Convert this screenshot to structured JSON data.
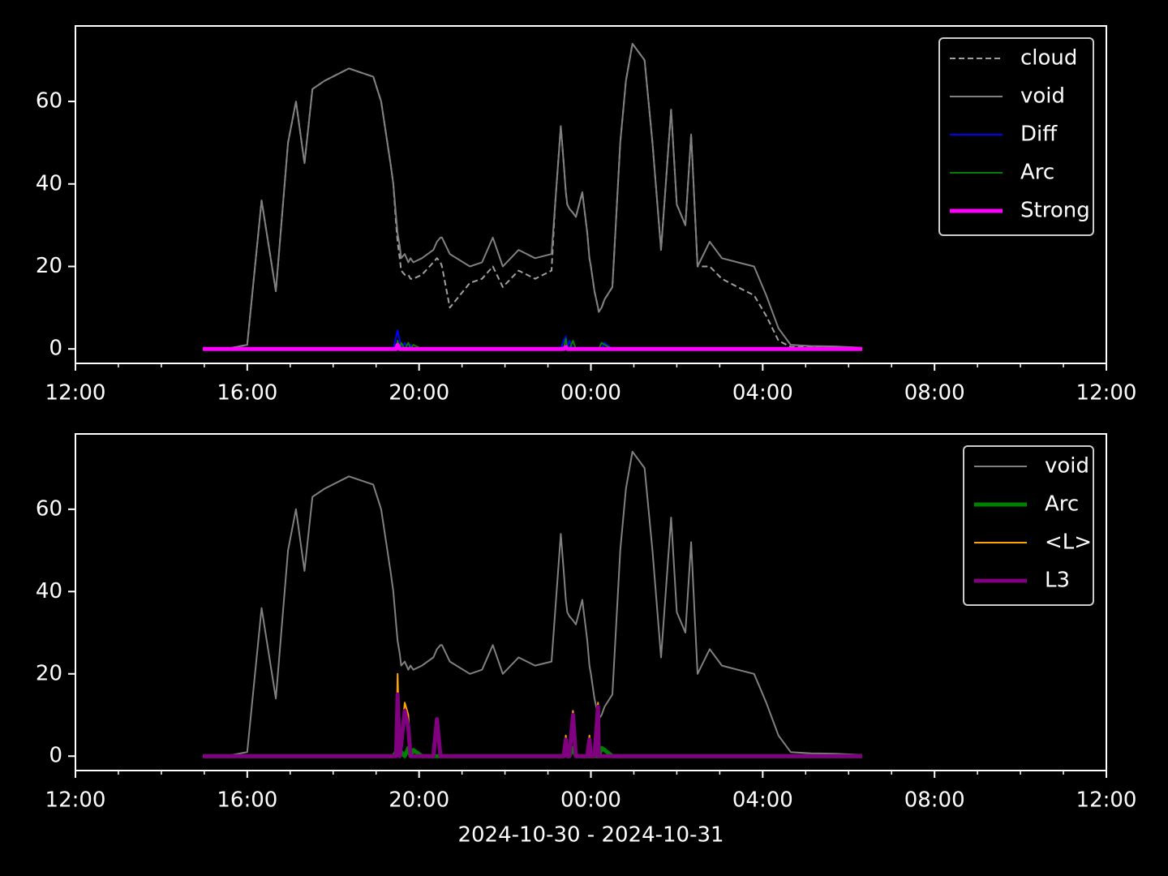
{
  "chart_data": [
    {
      "type": "line",
      "x": [
        "2024-10-30T14:58",
        "2024-10-30T15:30",
        "2024-10-30T16:00",
        "2024-10-30T16:20",
        "2024-10-30T16:40",
        "2024-10-30T16:57",
        "2024-10-30T17:08",
        "2024-10-30T17:20",
        "2024-10-30T17:31",
        "2024-10-30T17:48",
        "2024-10-30T18:22",
        "2024-10-30T18:56",
        "2024-10-30T19:07",
        "2024-10-30T19:20",
        "2024-10-30T19:24",
        "2024-10-30T19:28",
        "2024-10-30T19:30",
        "2024-10-30T19:33",
        "2024-10-30T19:35",
        "2024-10-30T19:40",
        "2024-10-30T19:45",
        "2024-10-30T19:48",
        "2024-10-30T19:52",
        "2024-10-30T20:04",
        "2024-10-30T20:20",
        "2024-10-30T20:25",
        "2024-10-30T20:30",
        "2024-10-30T20:32",
        "2024-10-30T20:43",
        "2024-10-30T21:11",
        "2024-10-30T21:28",
        "2024-10-30T21:43",
        "2024-10-30T21:57",
        "2024-10-30T22:19",
        "2024-10-30T22:42",
        "2024-10-30T23:05",
        "2024-10-30T23:10",
        "2024-10-30T23:18",
        "2024-10-30T23:22",
        "2024-10-30T23:25",
        "2024-10-30T23:27",
        "2024-10-30T23:30",
        "2024-10-30T23:35",
        "2024-10-30T23:39",
        "2024-10-30T23:48",
        "2024-10-30T23:55",
        "2024-10-30T23:58",
        "2024-10-31T00:00",
        "2024-10-31T00:05",
        "2024-10-31T00:10",
        "2024-10-31T00:11",
        "2024-10-31T00:15",
        "2024-10-31T00:19",
        "2024-10-31T00:30",
        "2024-10-31T00:41",
        "2024-10-31T00:49",
        "2024-10-31T00:58",
        "2024-10-31T01:15",
        "2024-10-31T01:26",
        "2024-10-31T01:38",
        "2024-10-31T01:52",
        "2024-10-31T02:00",
        "2024-10-31T02:12",
        "2024-10-31T02:20",
        "2024-10-31T02:29",
        "2024-10-31T02:46",
        "2024-10-31T03:03",
        "2024-10-31T03:25",
        "2024-10-31T03:48",
        "2024-10-31T04:05",
        "2024-10-31T04:22",
        "2024-10-31T04:39",
        "2024-10-31T05:07",
        "2024-10-31T05:41",
        "2024-10-31T06:19"
      ],
      "series": [
        {
          "name": "cloud",
          "color": "#a0a0a0",
          "linestyle": "dashed",
          "linewidth": 2,
          "values": [
            0,
            0,
            1,
            36,
            14,
            50,
            60,
            45,
            63,
            65,
            68,
            66,
            60,
            45,
            40,
            30,
            26,
            22,
            19,
            18,
            18,
            17,
            17,
            18,
            21,
            22,
            21,
            20,
            10,
            16,
            17,
            20,
            15,
            19,
            17,
            19,
            35,
            54,
            45,
            38,
            35,
            34,
            33,
            32,
            38,
            28,
            22,
            20,
            14,
            10,
            9,
            10,
            12,
            15,
            50,
            65,
            74,
            70,
            50,
            24,
            58,
            35,
            30,
            52,
            20,
            20,
            17,
            15,
            13,
            8,
            2,
            0.5,
            0.5,
            0.4,
            0.2
          ]
        },
        {
          "name": "void",
          "color": "#808080",
          "linestyle": "solid",
          "linewidth": 2,
          "values": [
            0,
            0,
            1,
            36,
            14,
            50,
            60,
            45,
            63,
            65,
            68,
            66,
            60,
            45,
            40,
            32,
            28,
            25,
            22,
            23,
            21,
            22,
            21,
            22,
            24,
            26,
            27,
            27,
            23,
            20,
            21,
            27,
            20,
            24,
            22,
            23,
            35,
            54,
            45,
            38,
            35,
            34,
            33,
            32,
            38,
            28,
            22,
            20,
            14,
            10,
            9,
            10,
            12,
            15,
            50,
            65,
            74,
            70,
            50,
            24,
            58,
            35,
            30,
            52,
            20,
            26,
            22,
            21,
            20,
            13,
            5,
            1,
            0.7,
            0.6,
            0.3
          ]
        },
        {
          "name": "Diff",
          "color": "#0000ff",
          "linestyle": "solid",
          "linewidth": 2,
          "values": [
            0,
            0,
            0,
            0,
            0,
            0,
            0,
            0,
            0,
            0,
            0,
            0,
            0,
            0,
            0,
            3,
            4.5,
            2,
            0,
            1.5,
            0,
            1,
            0,
            0,
            0,
            0,
            0,
            0,
            0,
            0,
            0,
            0,
            0,
            0,
            0,
            0,
            0,
            0,
            2,
            3,
            0,
            2,
            0,
            0,
            0,
            0,
            0,
            0,
            0,
            0,
            0,
            0,
            1.5,
            0,
            0,
            0,
            0,
            0,
            0,
            0,
            0,
            0,
            0,
            0,
            0,
            0,
            0,
            0,
            0,
            0,
            0,
            0,
            0,
            0,
            0
          ]
        },
        {
          "name": "Arc",
          "color": "#008000",
          "linestyle": "solid",
          "linewidth": 2,
          "values": [
            0,
            0,
            0,
            0,
            0,
            0,
            0,
            0,
            0,
            0,
            0,
            0,
            0,
            0,
            0,
            0,
            2,
            0,
            1.5,
            0,
            1.5,
            0,
            1,
            0,
            0,
            0,
            0,
            0,
            0,
            0,
            0,
            0,
            0,
            0,
            0,
            0,
            0,
            0,
            0,
            2.5,
            0,
            0,
            2,
            0,
            0,
            0,
            0,
            0,
            0,
            0,
            0,
            1.5,
            1,
            0,
            0,
            0,
            0,
            0,
            0,
            0,
            0,
            0,
            0,
            0,
            0,
            0,
            0,
            0,
            0,
            0,
            0,
            0,
            0,
            0,
            0
          ]
        },
        {
          "name": "Strong",
          "color": "#ff00ff",
          "linestyle": "solid",
          "linewidth": 5,
          "values": [
            0,
            0,
            0,
            0,
            0,
            0,
            0,
            0,
            0,
            0,
            0,
            0,
            0,
            0,
            0,
            0,
            1,
            0,
            0,
            0,
            0,
            0,
            0,
            0,
            0,
            0,
            0,
            0,
            0,
            0,
            0,
            0,
            0,
            0,
            0,
            0,
            0,
            0,
            0,
            0.5,
            0,
            0,
            0,
            0,
            0,
            0,
            0,
            0,
            0,
            0,
            0,
            0,
            0,
            0,
            0,
            0,
            0,
            0,
            0,
            0,
            0,
            0,
            0,
            0,
            0,
            0,
            0,
            0,
            0,
            0,
            0,
            0,
            0,
            0,
            0
          ]
        }
      ],
      "xlim": [
        "2024-10-30T12:00",
        "2024-10-31T12:00"
      ],
      "xticks": [
        {
          "value": "2024-10-30T12:00",
          "label": "12:00"
        },
        {
          "value": "2024-10-30T16:00",
          "label": "16:00"
        },
        {
          "value": "2024-10-30T20:00",
          "label": "20:00"
        },
        {
          "value": "2024-10-31T00:00",
          "label": "00:00"
        },
        {
          "value": "2024-10-31T04:00",
          "label": "04:00"
        },
        {
          "value": "2024-10-31T08:00",
          "label": "08:00"
        },
        {
          "value": "2024-10-31T12:00",
          "label": "12:00"
        }
      ],
      "xminorticks": [
        "2024-10-30T13:00",
        "2024-10-30T14:00",
        "2024-10-30T15:00",
        "2024-10-30T17:00",
        "2024-10-30T18:00",
        "2024-10-30T19:00",
        "2024-10-30T21:00",
        "2024-10-30T22:00",
        "2024-10-30T23:00",
        "2024-10-31T01:00",
        "2024-10-31T02:00",
        "2024-10-31T03:00",
        "2024-10-31T05:00",
        "2024-10-31T06:00",
        "2024-10-31T07:00",
        "2024-10-31T09:00",
        "2024-10-31T10:00",
        "2024-10-31T11:00"
      ],
      "ylim": [
        -3.5,
        78.3
      ],
      "yticks": [
        0,
        20,
        40,
        60
      ],
      "legend": "upper right"
    },
    {
      "type": "line",
      "x": [
        "2024-10-30T14:58",
        "2024-10-30T15:30",
        "2024-10-30T16:00",
        "2024-10-30T16:20",
        "2024-10-30T16:40",
        "2024-10-30T16:57",
        "2024-10-30T17:08",
        "2024-10-30T17:20",
        "2024-10-30T17:31",
        "2024-10-30T17:48",
        "2024-10-30T18:22",
        "2024-10-30T18:56",
        "2024-10-30T19:07",
        "2024-10-30T19:20",
        "2024-10-30T19:24",
        "2024-10-30T19:28",
        "2024-10-30T19:30",
        "2024-10-30T19:33",
        "2024-10-30T19:35",
        "2024-10-30T19:40",
        "2024-10-30T19:45",
        "2024-10-30T19:48",
        "2024-10-30T19:52",
        "2024-10-30T20:04",
        "2024-10-30T20:20",
        "2024-10-30T20:25",
        "2024-10-30T20:30",
        "2024-10-30T20:32",
        "2024-10-30T20:43",
        "2024-10-30T21:11",
        "2024-10-30T21:28",
        "2024-10-30T21:43",
        "2024-10-30T21:57",
        "2024-10-30T22:19",
        "2024-10-30T22:42",
        "2024-10-30T23:05",
        "2024-10-30T23:10",
        "2024-10-30T23:18",
        "2024-10-30T23:22",
        "2024-10-30T23:25",
        "2024-10-30T23:27",
        "2024-10-30T23:30",
        "2024-10-30T23:35",
        "2024-10-30T23:39",
        "2024-10-30T23:48",
        "2024-10-30T23:55",
        "2024-10-30T23:58",
        "2024-10-31T00:00",
        "2024-10-31T00:05",
        "2024-10-31T00:10",
        "2024-10-31T00:11",
        "2024-10-31T00:15",
        "2024-10-31T00:19",
        "2024-10-31T00:30",
        "2024-10-31T00:41",
        "2024-10-31T00:49",
        "2024-10-31T00:58",
        "2024-10-31T01:15",
        "2024-10-31T01:26",
        "2024-10-31T01:38",
        "2024-10-31T01:52",
        "2024-10-31T02:00",
        "2024-10-31T02:12",
        "2024-10-31T02:20",
        "2024-10-31T02:29",
        "2024-10-31T02:46",
        "2024-10-31T03:03",
        "2024-10-31T03:25",
        "2024-10-31T03:48",
        "2024-10-31T04:05",
        "2024-10-31T04:22",
        "2024-10-31T04:39",
        "2024-10-31T05:07",
        "2024-10-31T05:41",
        "2024-10-31T06:19"
      ],
      "series": [
        {
          "name": "void",
          "color": "#808080",
          "linestyle": "solid",
          "linewidth": 2,
          "values": [
            0,
            0,
            1,
            36,
            14,
            50,
            60,
            45,
            63,
            65,
            68,
            66,
            60,
            45,
            40,
            32,
            28,
            25,
            22,
            23,
            21,
            22,
            21,
            22,
            24,
            26,
            27,
            27,
            23,
            20,
            21,
            27,
            20,
            24,
            22,
            23,
            35,
            54,
            45,
            38,
            35,
            34,
            33,
            32,
            38,
            28,
            22,
            20,
            14,
            10,
            9,
            10,
            12,
            15,
            50,
            65,
            74,
            70,
            50,
            24,
            58,
            35,
            30,
            52,
            20,
            26,
            22,
            21,
            20,
            13,
            5,
            1,
            0.7,
            0.6,
            0.3
          ]
        },
        {
          "name": "Arc",
          "color": "#008000",
          "linestyle": "solid",
          "linewidth": 5,
          "values": [
            0,
            0,
            0,
            0,
            0,
            0,
            0,
            0,
            0,
            0,
            0,
            0,
            0,
            0,
            0,
            1,
            2,
            0,
            1,
            0,
            2,
            0,
            1.5,
            0,
            0,
            0,
            0,
            0,
            0,
            0,
            0,
            0,
            0,
            0,
            0,
            0,
            0,
            0,
            0,
            1.5,
            0,
            0,
            2,
            0,
            0,
            0,
            0,
            0,
            0,
            0,
            0,
            2,
            1.5,
            0,
            0,
            0,
            0,
            0,
            0,
            0,
            0,
            0,
            0,
            0,
            0,
            0,
            0,
            0,
            0,
            0,
            0,
            0,
            0,
            0,
            0
          ]
        },
        {
          "name": "<L>",
          "color": "#ffa500",
          "linestyle": "solid",
          "linewidth": 2,
          "values": [
            0,
            0,
            0,
            0,
            0,
            0,
            0,
            0,
            0,
            0,
            0,
            0,
            0,
            0,
            0,
            0,
            20,
            0,
            4,
            13,
            10,
            0,
            0,
            0,
            0,
            9,
            0,
            0,
            0,
            0,
            0,
            0,
            0,
            0,
            0,
            0,
            0,
            0,
            0,
            5,
            0,
            0,
            11,
            0,
            0,
            0,
            5,
            0,
            0,
            13,
            0,
            0,
            0,
            0,
            0,
            0,
            0,
            0,
            0,
            0,
            0,
            0,
            0,
            0,
            0,
            0,
            0,
            0,
            0,
            0,
            0,
            0,
            0,
            0,
            0
          ]
        },
        {
          "name": "L3",
          "color": "#800080",
          "linestyle": "solid",
          "linewidth": 5,
          "values": [
            0,
            0,
            0,
            0,
            0,
            0,
            0,
            0,
            0,
            0,
            0,
            0,
            0,
            0,
            0,
            0,
            15,
            0,
            3,
            11,
            7,
            0,
            0,
            0,
            0,
            9,
            0,
            0,
            0,
            0,
            0,
            0,
            0,
            0,
            0,
            0,
            0,
            0,
            0,
            4,
            0,
            0,
            10,
            0,
            0,
            0,
            4,
            0,
            0,
            12,
            0,
            0,
            0,
            0,
            0,
            0,
            0,
            0,
            0,
            0,
            0,
            0,
            0,
            0,
            0,
            0,
            0,
            0,
            0,
            0,
            0,
            0,
            0,
            0,
            0
          ]
        }
      ],
      "xlim": [
        "2024-10-30T12:00",
        "2024-10-31T12:00"
      ],
      "xticks": [
        {
          "value": "2024-10-30T12:00",
          "label": "12:00"
        },
        {
          "value": "2024-10-30T16:00",
          "label": "16:00"
        },
        {
          "value": "2024-10-30T20:00",
          "label": "20:00"
        },
        {
          "value": "2024-10-31T00:00",
          "label": "00:00"
        },
        {
          "value": "2024-10-31T04:00",
          "label": "04:00"
        },
        {
          "value": "2024-10-31T08:00",
          "label": "08:00"
        },
        {
          "value": "2024-10-31T12:00",
          "label": "12:00"
        }
      ],
      "xminorticks": [
        "2024-10-30T13:00",
        "2024-10-30T14:00",
        "2024-10-30T15:00",
        "2024-10-30T17:00",
        "2024-10-30T18:00",
        "2024-10-30T19:00",
        "2024-10-30T21:00",
        "2024-10-30T22:00",
        "2024-10-30T23:00",
        "2024-10-31T01:00",
        "2024-10-31T02:00",
        "2024-10-31T03:00",
        "2024-10-31T05:00",
        "2024-10-31T06:00",
        "2024-10-31T07:00",
        "2024-10-31T09:00",
        "2024-10-31T10:00",
        "2024-10-31T11:00"
      ],
      "ylim": [
        -3.5,
        78.3
      ],
      "yticks": [
        0,
        20,
        40,
        60
      ],
      "legend": "upper right",
      "xlabel": "2024-10-30 - 2024-10-31"
    }
  ]
}
